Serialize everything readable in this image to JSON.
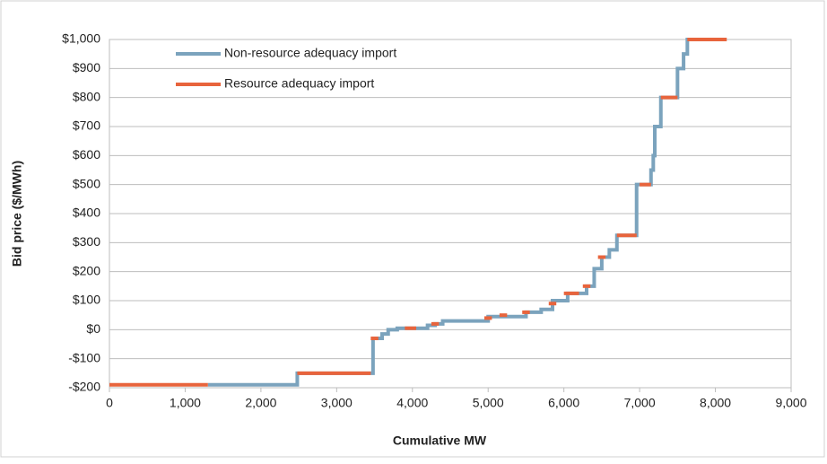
{
  "chart_data": {
    "type": "line",
    "xlabel": "Cumulative MW",
    "ylabel": "Bid price ($/MWh)",
    "xlim": [
      0,
      9000
    ],
    "xticks": [
      0,
      {
        "value": 1000,
        "label": "1,000"
      },
      {
        "value": 2000,
        "label": "2,000"
      },
      {
        "value": 3000,
        "label": "3,000"
      },
      {
        "value": 4000,
        "label": "4,000"
      },
      {
        "value": 5000,
        "label": "5,000"
      },
      {
        "value": 6000,
        "label": "6,000"
      },
      {
        "value": 7000,
        "label": "7,000"
      },
      {
        "value": 8000,
        "label": "8,000"
      },
      {
        "value": 9000,
        "label": "9,000"
      }
    ],
    "ylim": [
      -200,
      1000
    ],
    "yticks": [
      {
        "value": -200,
        "label": "-$200"
      },
      {
        "value": -100,
        "label": "-$100"
      },
      {
        "value": 0,
        "label": "$0"
      },
      {
        "value": 100,
        "label": "$100"
      },
      {
        "value": 200,
        "label": "$200"
      },
      {
        "value": 300,
        "label": "$300"
      },
      {
        "value": 400,
        "label": "$400"
      },
      {
        "value": 500,
        "label": "$500"
      },
      {
        "value": 600,
        "label": "$600"
      },
      {
        "value": 700,
        "label": "$700"
      },
      {
        "value": 800,
        "label": "$800"
      },
      {
        "value": 900,
        "label": "$900"
      },
      {
        "value": 1000,
        "label": "$1,000"
      }
    ],
    "grid": true,
    "legend": "upper left",
    "series": [
      {
        "name": "Non-resource adequacy import",
        "color": "#7ba3bd",
        "x": [
          1300,
          2480,
          2480,
          3480,
          3480,
          3600,
          3600,
          3680,
          3680,
          3800,
          3800,
          4200,
          4200,
          4300,
          4300,
          4400,
          4400,
          5000,
          5000,
          5500,
          5500,
          5700,
          5700,
          5850,
          5850,
          6050,
          6050,
          6300,
          6300,
          6400,
          6400,
          6500,
          6500,
          6600,
          6600,
          6700,
          6700,
          6960,
          6960,
          7150,
          7150,
          7180,
          7180,
          7200,
          7200,
          7280,
          7280,
          7500,
          7500,
          7580,
          7580,
          7630,
          7630,
          7650
        ],
        "values": [
          -190,
          -190,
          -150,
          -150,
          -30,
          -30,
          -15,
          -15,
          0,
          0,
          5,
          5,
          15,
          15,
          20,
          20,
          30,
          30,
          45,
          45,
          60,
          60,
          70,
          70,
          100,
          100,
          125,
          125,
          150,
          150,
          210,
          210,
          250,
          250,
          275,
          275,
          325,
          325,
          500,
          500,
          550,
          550,
          600,
          600,
          700,
          700,
          800,
          800,
          900,
          900,
          950,
          950,
          1000,
          1000
        ]
      },
      {
        "name": "Resource adequacy import",
        "color": "#e8643c",
        "x": [
          0,
          1300,
          null,
          2480,
          3450,
          null,
          3450,
          3550,
          null,
          3900,
          4050,
          null,
          4250,
          4350,
          null,
          4950,
          5050,
          null,
          5150,
          5250,
          null,
          5450,
          5550,
          null,
          5800,
          5900,
          null,
          6000,
          6200,
          null,
          6250,
          6350,
          null,
          6450,
          6550,
          null,
          6700,
          6960,
          null,
          7000,
          7150,
          null,
          7280,
          7500,
          null,
          7630,
          8150
        ],
        "values": [
          -190,
          -190,
          null,
          -150,
          -150,
          null,
          -30,
          -30,
          null,
          5,
          5,
          null,
          20,
          20,
          null,
          40,
          40,
          null,
          50,
          50,
          null,
          60,
          60,
          null,
          90,
          90,
          null,
          125,
          125,
          null,
          150,
          150,
          null,
          250,
          250,
          null,
          325,
          325,
          null,
          500,
          500,
          null,
          800,
          800,
          null,
          1000,
          1000
        ]
      }
    ]
  }
}
